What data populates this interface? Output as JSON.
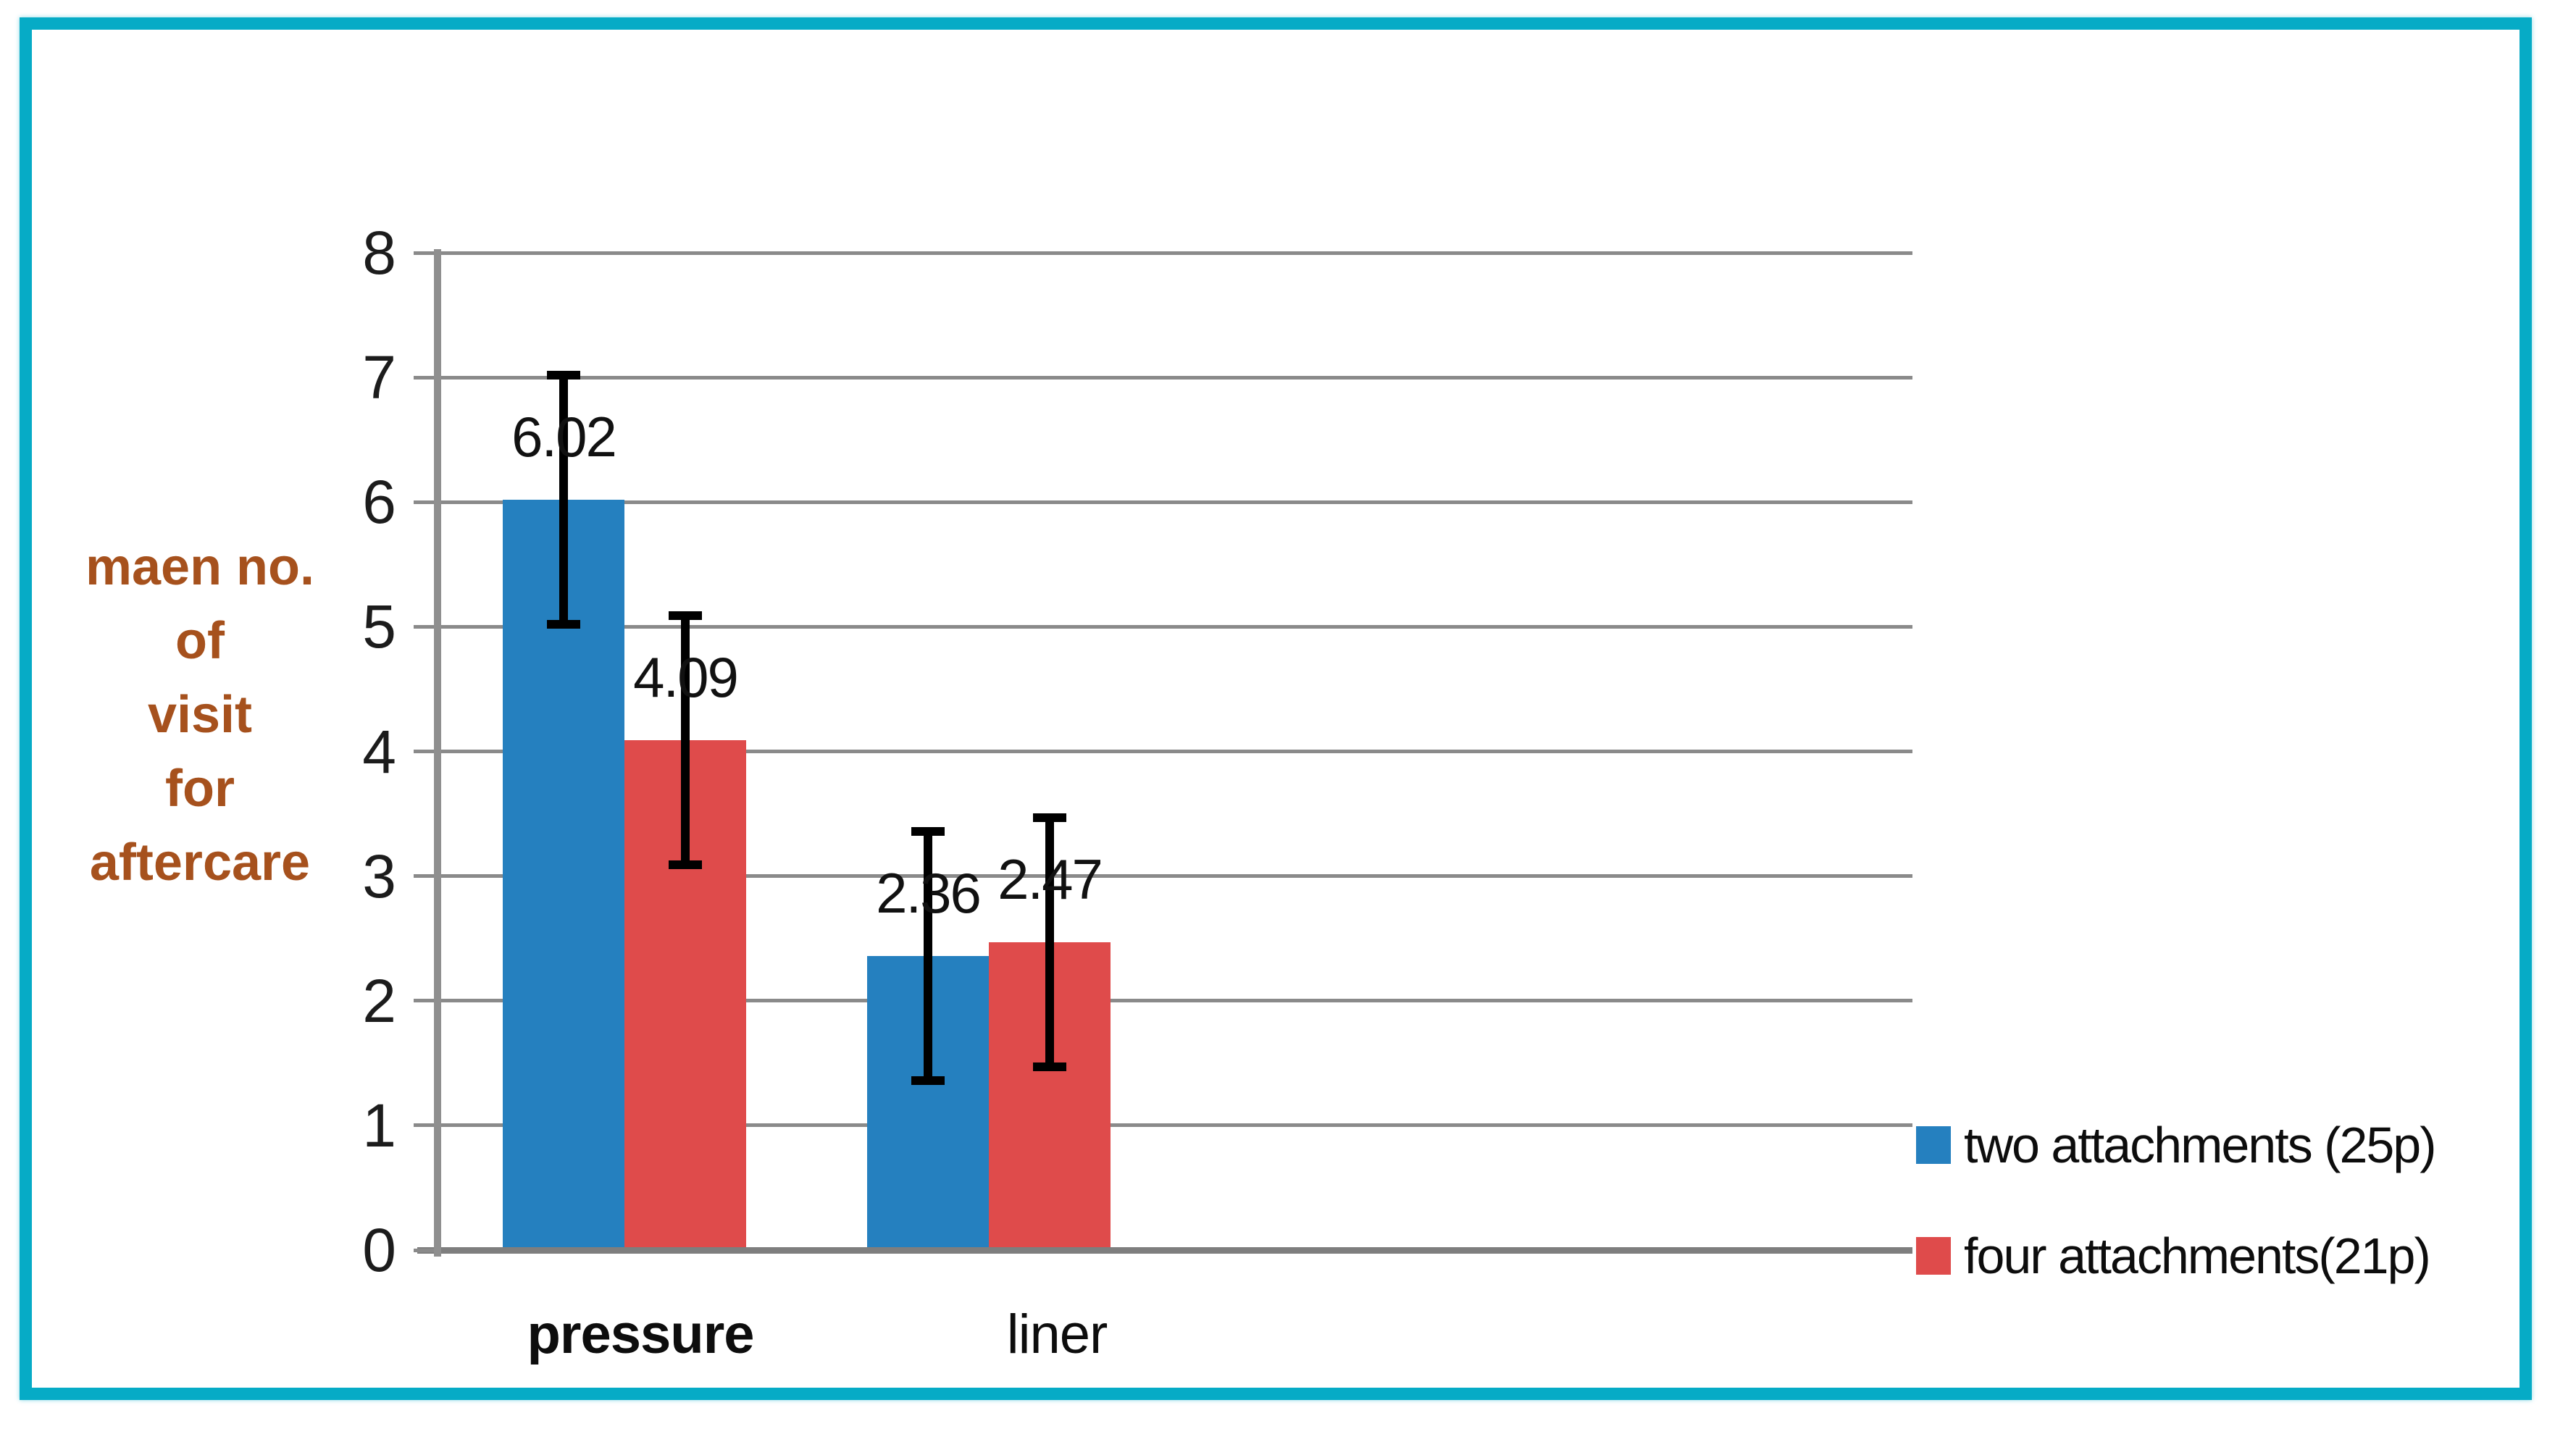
{
  "chart_data": {
    "type": "bar",
    "categories": [
      "pressure",
      "liner"
    ],
    "categories_bold": [
      true,
      false
    ],
    "series": [
      {
        "name": "two attachments (25p)",
        "color": "#2580BF",
        "values": [
          6.02,
          2.36
        ],
        "labels": [
          "6.02",
          "2.36"
        ],
        "errors": [
          1.0,
          1.0
        ]
      },
      {
        "name": "four attachments(21p)",
        "color": "#DF4B4B",
        "values": [
          4.09,
          2.47
        ],
        "labels": [
          "4.09",
          "2.47"
        ],
        "errors": [
          1.0,
          1.0
        ]
      }
    ],
    "title": "",
    "xlabel": "",
    "ylabel": "maen no. of visit for aftercare",
    "ylabel_lines": [
      "maen no.",
      "of",
      "visit",
      "for",
      "aftercare"
    ],
    "ylim": [
      0,
      8
    ],
    "yticks": [
      0,
      1,
      2,
      3,
      4,
      5,
      6,
      7,
      8
    ],
    "grid": true,
    "error_bars": true,
    "legend_position": "right"
  },
  "frame": {
    "border_color": "#06ABC6"
  },
  "palette": {
    "gridline": "#8A8A8A",
    "axis_line": "#8F8F8F",
    "zero_line": "#7E7E7E",
    "ylabel_color": "#A6511D",
    "error_bar": "#000000"
  }
}
